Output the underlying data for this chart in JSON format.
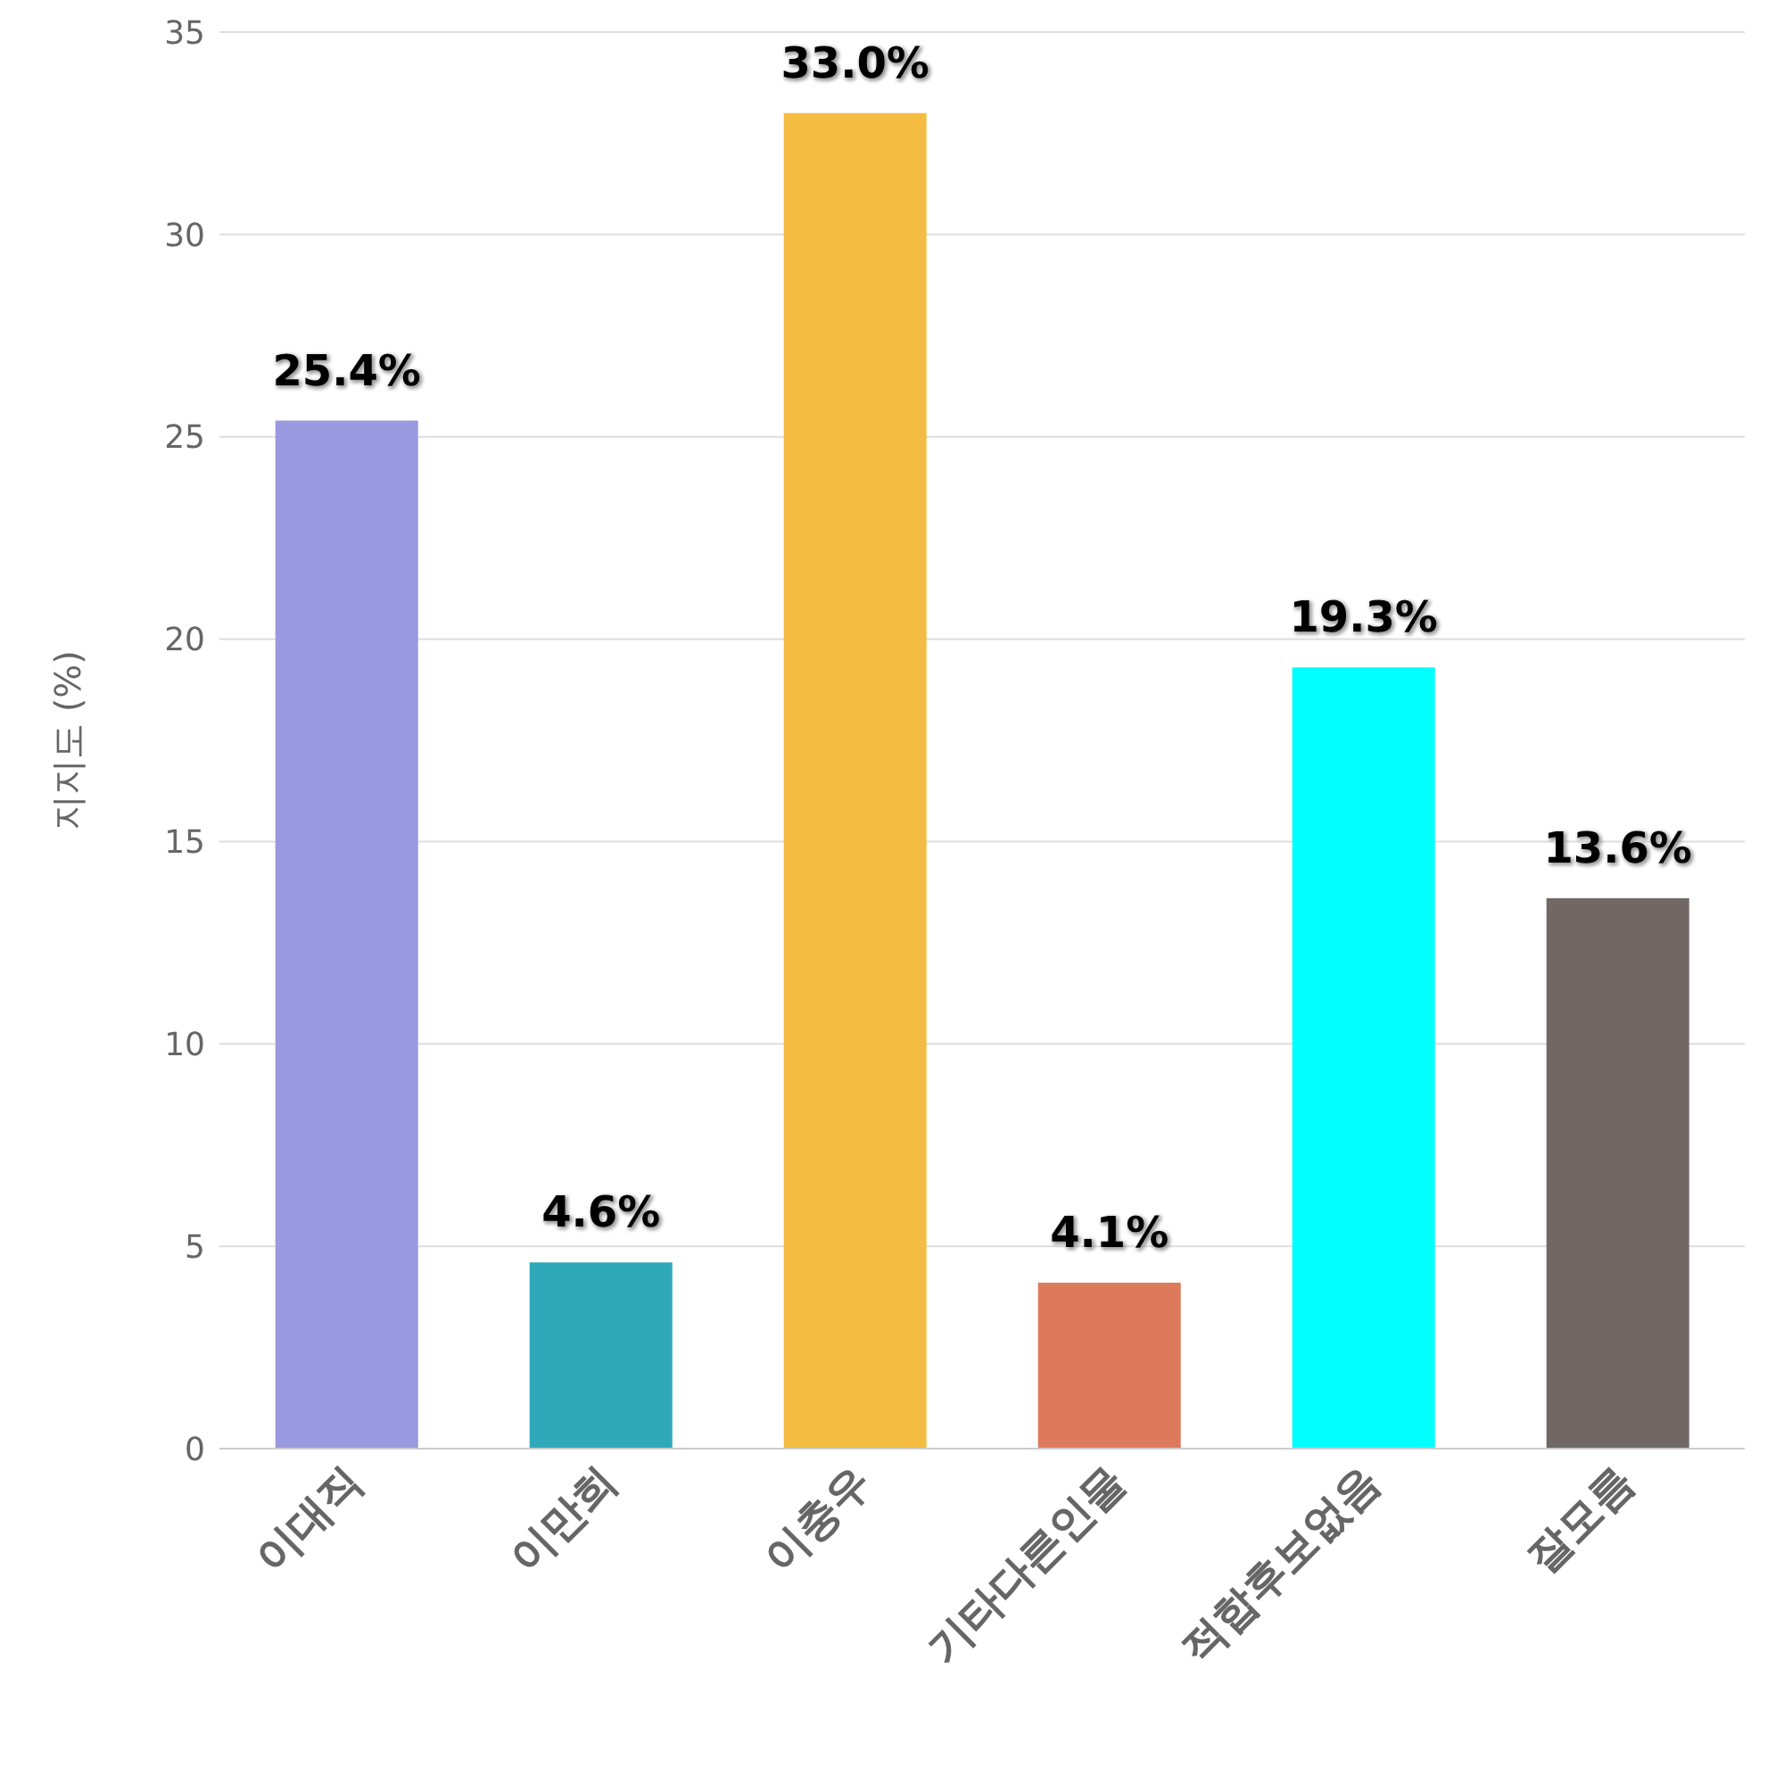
{
  "chart_data": {
    "type": "bar",
    "ylabel": "지지도 (%)",
    "categories": [
      "이대직",
      "이만희",
      "이충우",
      "기타다른인물",
      "적합후보없음",
      "잘모름"
    ],
    "values": [
      25.4,
      4.6,
      33.0,
      4.1,
      19.3,
      13.6
    ],
    "colors": [
      "#9999e0",
      "#2fa8ba",
      "#f4bd42",
      "#dd7a5c",
      "#00ffff",
      "#716866"
    ],
    "value_labels": [
      "25.4%",
      "4.6%",
      "33.0%",
      "4.1%",
      "19.3%",
      "13.6%"
    ],
    "ylim": [
      0,
      35
    ],
    "yticks": [
      0,
      5,
      10,
      15,
      20,
      25,
      30,
      35
    ],
    "grid": "y"
  }
}
